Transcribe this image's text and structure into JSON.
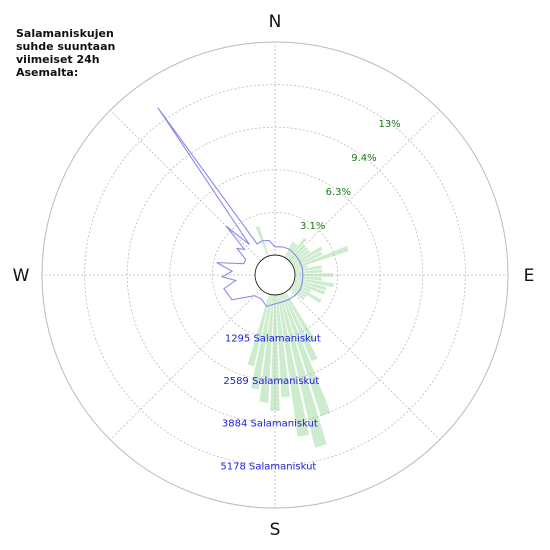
{
  "chart_data": {
    "type": "polar-bar-and-line",
    "title": "Salamaniskujen\nsuhde suuntaan\nviimeiset 24h\nAsemalta:",
    "directions": [
      "N",
      "E",
      "S",
      "W"
    ],
    "percent_ticks": [
      "3.1%",
      "6.3%",
      "9.4%",
      "13%"
    ],
    "percent_max": 15.6,
    "count_ticks": [
      "1295 Salamaniskut",
      "2589 Salamaniskut",
      "3884 Salamaniskut",
      "5178 Salamaniskut"
    ],
    "count_max": 6473,
    "grid": true,
    "colors": {
      "percent_series": "#cdebcd",
      "count_series": "#8a8aee",
      "percent_labels": "#1a7a1a",
      "count_labels": "#2020dd",
      "grid": "#bbbbbb"
    },
    "series": [
      {
        "kind": "bar",
        "bearings_deg": [
          30,
          35,
          40,
          45,
          50,
          55,
          60,
          65,
          70,
          75,
          80,
          85,
          90,
          95,
          100,
          105,
          110,
          115,
          120,
          125,
          130,
          150,
          155,
          160,
          165,
          170,
          175,
          180,
          185,
          190,
          195,
          340
        ],
        "values_pct": [
          1.3,
          1.3,
          2.0,
          1.6,
          1.6,
          1.6,
          2.5,
          2.3,
          4.2,
          1.0,
          2.0,
          2.0,
          2.8,
          2.0,
          2.9,
          2.4,
          2.4,
          1.4,
          2.4,
          1.3,
          1.3,
          4.1,
          5.4,
          9.4,
          11.5,
          10.5,
          7.5,
          8.5,
          7.9,
          7.0,
          5.4,
          2.3
        ]
      },
      {
        "kind": "line",
        "bearings_deg": [
          0,
          15,
          30,
          45,
          60,
          75,
          90,
          105,
          120,
          135,
          150,
          165,
          180,
          195,
          210,
          225,
          240,
          255,
          262,
          268,
          275,
          282,
          290,
          298,
          305,
          310,
          315,
          320,
          325,
          330,
          340,
          350
        ],
        "values_count": [
          250,
          280,
          290,
          260,
          250,
          250,
          240,
          250,
          280,
          260,
          250,
          240,
          270,
          380,
          230,
          280,
          900,
          1000,
          600,
          1000,
          700,
          1200,
          400,
          400,
          800,
          600,
          1500,
          600,
          5600,
          480,
          500,
          460
        ]
      }
    ]
  }
}
